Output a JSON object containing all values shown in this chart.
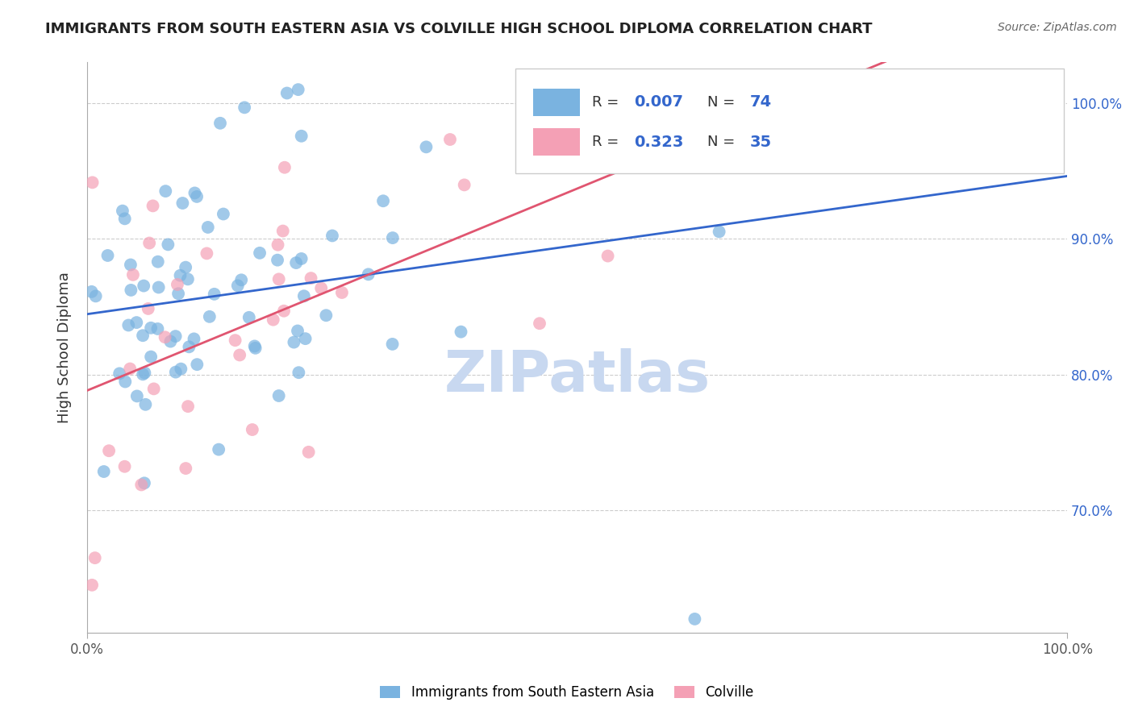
{
  "title": "IMMIGRANTS FROM SOUTH EASTERN ASIA VS COLVILLE HIGH SCHOOL DIPLOMA CORRELATION CHART",
  "source_text": "Source: ZipAtlas.com",
  "ylabel": "High School Diploma",
  "y_tick_values": [
    0.7,
    0.8,
    0.9,
    1.0
  ],
  "y_tick_labels": [
    "70.0%",
    "80.0%",
    "90.0%",
    "100.0%"
  ],
  "xlim": [
    0.0,
    1.0
  ],
  "ylim": [
    0.61,
    1.03
  ],
  "legend_label_blue": "Immigrants from South Eastern Asia",
  "legend_label_pink": "Colville",
  "R_blue": "0.007",
  "N_blue": "74",
  "R_pink": "0.323",
  "N_pink": "35",
  "blue_color": "#7ab3e0",
  "pink_color": "#f4a0b5",
  "trend_blue_color": "#3366cc",
  "trend_pink_color": "#e05570",
  "watermark": "ZIPatlas",
  "watermark_color": "#c8d8f0"
}
